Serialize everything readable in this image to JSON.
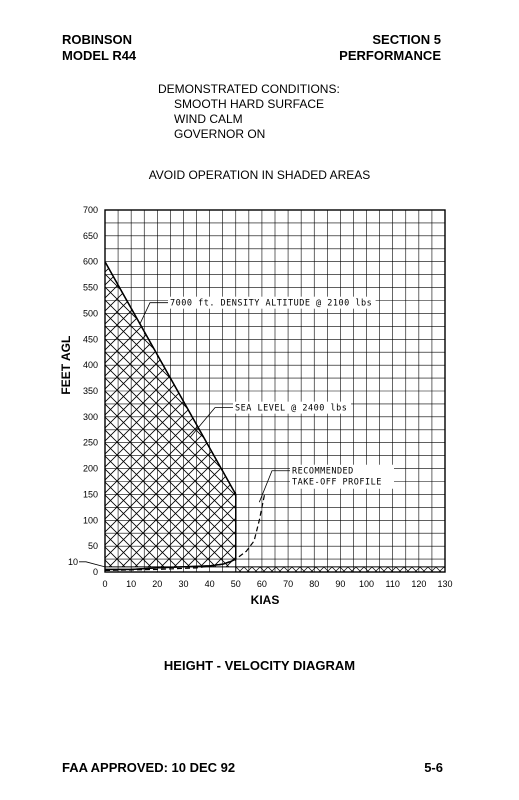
{
  "header": {
    "left_line1": "ROBINSON",
    "left_line2": "MODEL R44",
    "right_line1": "SECTION 5",
    "right_line2": "PERFORMANCE"
  },
  "conditions": {
    "title": "DEMONSTRATED CONDITIONS:",
    "items": [
      "SMOOTH HARD SURFACE",
      "WIND CALM",
      "GOVERNOR ON"
    ]
  },
  "warning": "AVOID OPERATION IN SHADED AREAS",
  "caption": "HEIGHT - VELOCITY DIAGRAM",
  "footer": {
    "approval": "FAA APPROVED: 10 DEC 92",
    "page": "5-6"
  },
  "chart_data": {
    "type": "line",
    "xlabel": "KIAS",
    "ylabel": "FEET AGL",
    "xlim": [
      0,
      130
    ],
    "ylim": [
      0,
      700
    ],
    "x_ticks": [
      0,
      10,
      20,
      30,
      40,
      50,
      60,
      70,
      80,
      90,
      100,
      110,
      120,
      130
    ],
    "y_ticks": [
      0,
      10,
      50,
      100,
      150,
      200,
      250,
      300,
      350,
      400,
      450,
      500,
      550,
      600,
      650,
      700
    ],
    "grid": true,
    "series": [
      {
        "name": "7000 ft. DENSITY ALTITUDE @ 2100 lbs",
        "x": [
          0,
          50,
          50,
          48,
          45,
          40,
          30,
          20,
          10,
          0
        ],
        "y": [
          600,
          150,
          25,
          20,
          15,
          12,
          10,
          8,
          5,
          5
        ]
      },
      {
        "name": "SEA LEVEL @ 2400 lbs",
        "x": [
          0,
          50,
          50,
          48,
          45,
          40,
          30,
          20,
          10,
          0
        ],
        "y": [
          600,
          150,
          25,
          20,
          15,
          12,
          10,
          8,
          5,
          5
        ]
      },
      {
        "name": "RECOMMENDED TAKE-OFF PROFILE",
        "x": [
          0,
          20,
          35,
          45,
          50,
          54,
          57,
          59,
          61
        ],
        "y": [
          3,
          5,
          8,
          15,
          25,
          40,
          60,
          100,
          150
        ]
      }
    ],
    "shaded_areas": [
      {
        "x": [
          0,
          50,
          50,
          0
        ],
        "y": [
          600,
          150,
          10,
          10
        ]
      },
      {
        "x": [
          50,
          130,
          130,
          50
        ],
        "y": [
          10,
          10,
          0,
          0
        ]
      }
    ]
  }
}
